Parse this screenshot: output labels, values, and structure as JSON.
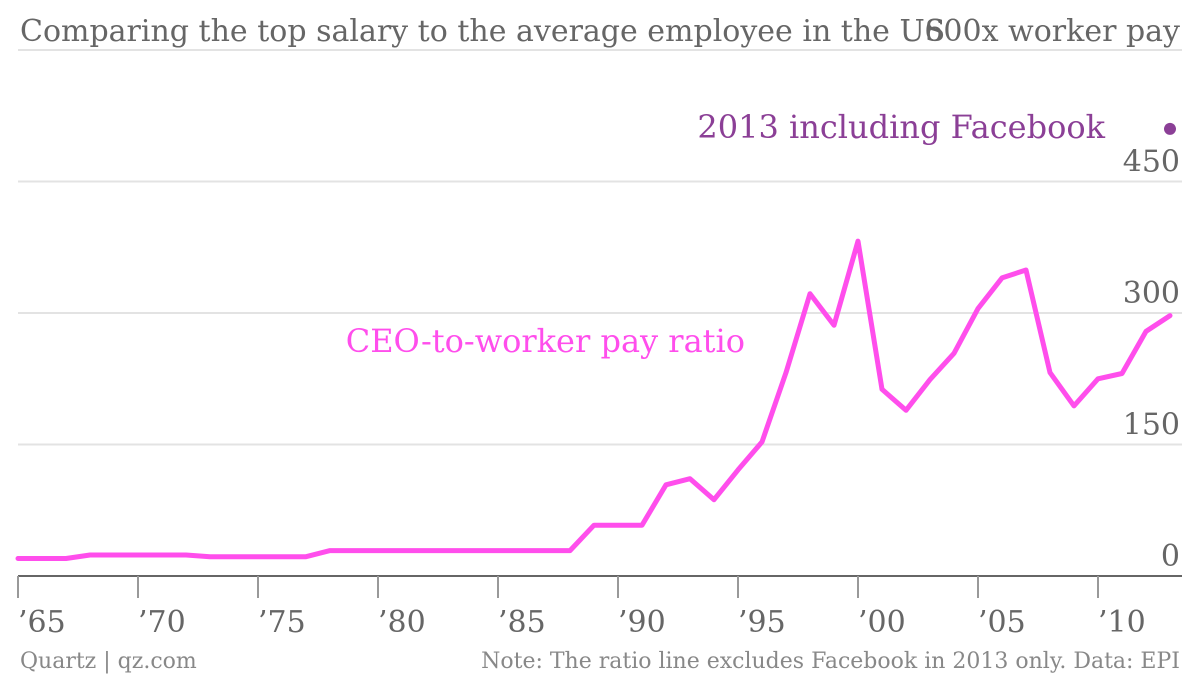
{
  "chart_data": {
    "type": "line",
    "title": "Comparing the top salary to the average employee in the US",
    "unit_label": "600x worker pay",
    "x_tick_labels": [
      "’65",
      "’70",
      "’75",
      "’80",
      "’85",
      "’90",
      "’95",
      "’00",
      "’05",
      "’10"
    ],
    "x_ticks": [
      1965,
      1970,
      1975,
      1980,
      1985,
      1990,
      1995,
      2000,
      2005,
      2010
    ],
    "y_ticks": [
      0,
      150,
      300,
      450
    ],
    "y_tick_labels": [
      "0",
      "150",
      "300",
      "450"
    ],
    "xlim": [
      1965,
      2013.5
    ],
    "ylim": [
      0,
      600
    ],
    "grid": true,
    "y_axis_position": "right",
    "series": [
      {
        "name": "CEO-to-worker pay ratio",
        "color": "#ff4eec",
        "x": [
          1965,
          1966,
          1967,
          1968,
          1969,
          1970,
          1971,
          1972,
          1973,
          1974,
          1975,
          1976,
          1977,
          1978,
          1979,
          1980,
          1981,
          1982,
          1983,
          1984,
          1985,
          1986,
          1987,
          1988,
          1989,
          1990,
          1991,
          1992,
          1993,
          1994,
          1995,
          1996,
          1997,
          1998,
          1999,
          2000,
          2001,
          2002,
          2003,
          2004,
          2005,
          2006,
          2007,
          2008,
          2009,
          2010,
          2011,
          2012,
          2013
        ],
        "values": [
          20,
          20,
          20,
          24,
          24,
          24,
          24,
          24,
          22,
          22,
          22,
          22,
          22,
          29,
          29,
          29,
          29,
          29,
          29,
          29,
          29,
          29,
          29,
          29,
          58,
          58,
          58,
          104,
          111,
          87,
          121,
          153,
          232,
          322,
          286,
          382,
          213,
          189,
          224,
          254,
          305,
          340,
          349,
          232,
          194,
          225,
          231,
          279,
          297
        ]
      }
    ],
    "points": [
      {
        "name": "2013 including Facebook",
        "x": 2013,
        "y": 510,
        "color": "#8b3f96"
      }
    ],
    "annotations": [
      {
        "text": "CEO-to-worker pay ratio",
        "color": "#ff4eec"
      },
      {
        "text": "2013 including Facebook",
        "color": "#8b3f96"
      }
    ]
  },
  "footer": {
    "source": "Quartz | qz.com",
    "note": "Note: The ratio line excludes Facebook in 2013 only. Data: EPI"
  }
}
